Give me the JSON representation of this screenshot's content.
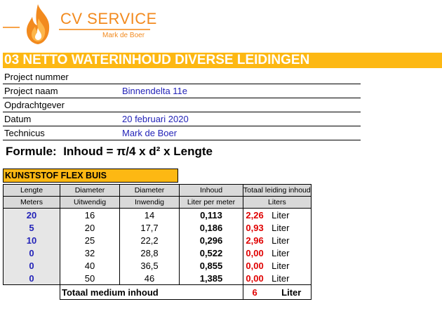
{
  "logo": {
    "brand": "CV SERVICE",
    "owner": "Mark de Boer",
    "icon": "flame-icon",
    "color": "#f28a1e"
  },
  "title": "03 NETTO WATERINHOUD DIVERSE LEIDINGEN",
  "info": [
    {
      "label": "Project nummer",
      "value": ""
    },
    {
      "label": "Project naam",
      "value": "Binnendelta 11e"
    },
    {
      "label": "Opdrachtgever",
      "value": ""
    },
    {
      "label": "Datum",
      "value": "20 februari 2020"
    },
    {
      "label": "Technicus",
      "value": "Mark de Boer"
    }
  ],
  "formula": {
    "label": "Formule:",
    "expression": "Inhoud = π/4 x d² x Lengte"
  },
  "section": {
    "title": "KUNSTSTOF FLEX BUIS",
    "color": "#fdb813"
  },
  "table": {
    "headers": [
      [
        "Lengte",
        "Meters"
      ],
      [
        "Diameter",
        "Uitwendig"
      ],
      [
        "Diameter",
        "Inwendig"
      ],
      [
        "Inhoud",
        "Liter per meter"
      ],
      [
        "Totaal leiding inhoud",
        "Liters"
      ]
    ],
    "rows": [
      {
        "length": "20",
        "outer": "16",
        "inner": "14",
        "per_meter": "0,113",
        "total": "2,26",
        "unit": "Liter"
      },
      {
        "length": "5",
        "outer": "20",
        "inner": "17,7",
        "per_meter": "0,186",
        "total": "0,93",
        "unit": "Liter"
      },
      {
        "length": "10",
        "outer": "25",
        "inner": "22,2",
        "per_meter": "0,296",
        "total": "2,96",
        "unit": "Liter"
      },
      {
        "length": "0",
        "outer": "32",
        "inner": "28,8",
        "per_meter": "0,522",
        "total": "0,00",
        "unit": "Liter"
      },
      {
        "length": "0",
        "outer": "40",
        "inner": "36,5",
        "per_meter": "0,855",
        "total": "0,00",
        "unit": "Liter"
      },
      {
        "length": "0",
        "outer": "50",
        "inner": "46",
        "per_meter": "1,385",
        "total": "0,00",
        "unit": "Liter"
      }
    ],
    "footer": {
      "label": "Totaal medium inhoud",
      "value": "6",
      "unit": "Liter"
    }
  }
}
